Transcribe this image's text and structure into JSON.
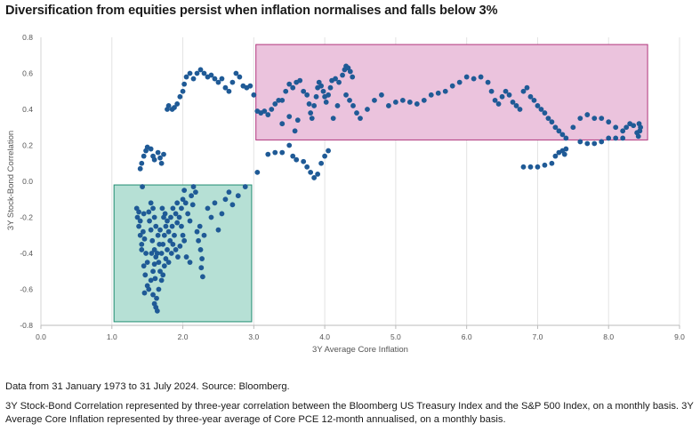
{
  "title": "Diversification from equities persist when inflation normalises and falls below 3%",
  "notes": {
    "source": "Data from 31 January 1973 to 31 July 2024. Source: Bloomberg.",
    "definition": "3Y Stock-Bond Correlation represented by three-year correlation between the Bloomberg US Treasury Index and the S&P 500 Index, on a monthly basis. 3Y Average Core Inflation represented by three-year average of Core PCE 12-month annualised, on a monthly basis."
  },
  "colors": {
    "point": "#1f5a96",
    "green_box_fill": "#b6e0d5",
    "green_box_stroke": "#1f8c70",
    "pink_box_fill": "#ebc3dd",
    "pink_box_stroke": "#b0357c",
    "grid": "#e3e3e3"
  },
  "chart_data": {
    "type": "scatter",
    "xlabel": "3Y Average Core Inflation",
    "ylabel": "3Y Stock-Bond Correlation",
    "xlim": [
      0,
      9
    ],
    "ylim": [
      -0.8,
      0.8
    ],
    "x_ticks": [
      "0.0",
      "1.0",
      "2.0",
      "3.0",
      "4.0",
      "5.0",
      "6.0",
      "7.0",
      "8.0",
      "9.0"
    ],
    "y_ticks": [
      "-0.8",
      "-0.6",
      "-0.4",
      "-0.2",
      "0.0",
      "0.2",
      "0.4",
      "0.6",
      "0.8"
    ],
    "grid": "vertical",
    "regions": [
      {
        "x": [
          1.03,
          2.97
        ],
        "y": [
          -0.78,
          -0.02
        ],
        "color": "green"
      },
      {
        "x": [
          3.03,
          8.55
        ],
        "y": [
          0.23,
          0.76
        ],
        "color": "pink"
      }
    ],
    "points": [
      [
        1.35,
        -0.15
      ],
      [
        1.36,
        -0.2
      ],
      [
        1.38,
        -0.25
      ],
      [
        1.4,
        -0.3
      ],
      [
        1.42,
        -0.35
      ],
      [
        1.38,
        -0.17
      ],
      [
        1.4,
        -0.22
      ],
      [
        1.45,
        -0.18
      ],
      [
        1.44,
        -0.28
      ],
      [
        1.46,
        -0.32
      ],
      [
        1.48,
        -0.4
      ],
      [
        1.45,
        -0.47
      ],
      [
        1.47,
        -0.52
      ],
      [
        1.5,
        -0.58
      ],
      [
        1.46,
        -0.62
      ],
      [
        1.52,
        -0.6
      ],
      [
        1.55,
        -0.55
      ],
      [
        1.58,
        -0.5
      ],
      [
        1.6,
        -0.46
      ],
      [
        1.62,
        -0.42
      ],
      [
        1.6,
        -0.38
      ],
      [
        1.57,
        -0.33
      ],
      [
        1.55,
        -0.27
      ],
      [
        1.53,
        -0.22
      ],
      [
        1.52,
        -0.17
      ],
      [
        1.55,
        -0.12
      ],
      [
        1.58,
        -0.15
      ],
      [
        1.6,
        -0.2
      ],
      [
        1.62,
        -0.25
      ],
      [
        1.65,
        -0.3
      ],
      [
        1.67,
        -0.35
      ],
      [
        1.64,
        -0.4
      ],
      [
        1.66,
        -0.45
      ],
      [
        1.68,
        -0.5
      ],
      [
        1.7,
        -0.55
      ],
      [
        1.66,
        -0.6
      ],
      [
        1.63,
        -0.65
      ],
      [
        1.62,
        -0.7
      ],
      [
        1.64,
        -0.72
      ],
      [
        1.6,
        -0.68
      ],
      [
        1.58,
        -0.63
      ],
      [
        1.7,
        -0.4
      ],
      [
        1.72,
        -0.35
      ],
      [
        1.74,
        -0.3
      ],
      [
        1.76,
        -0.25
      ],
      [
        1.73,
        -0.2
      ],
      [
        1.71,
        -0.15
      ],
      [
        1.75,
        -0.18
      ],
      [
        1.78,
        -0.22
      ],
      [
        1.8,
        -0.28
      ],
      [
        1.82,
        -0.33
      ],
      [
        1.78,
        -0.38
      ],
      [
        1.76,
        -0.43
      ],
      [
        1.74,
        -0.47
      ],
      [
        1.72,
        -0.52
      ],
      [
        1.8,
        -0.45
      ],
      [
        1.84,
        -0.4
      ],
      [
        1.86,
        -0.35
      ],
      [
        1.88,
        -0.3
      ],
      [
        1.85,
        -0.25
      ],
      [
        1.83,
        -0.2
      ],
      [
        1.86,
        -0.15
      ],
      [
        1.9,
        -0.18
      ],
      [
        1.92,
        -0.23
      ],
      [
        1.95,
        -0.2
      ],
      [
        1.98,
        -0.15
      ],
      [
        2.0,
        -0.1
      ],
      [
        2.02,
        -0.05
      ],
      [
        2.04,
        -0.12
      ],
      [
        2.07,
        -0.18
      ],
      [
        2.1,
        -0.22
      ],
      [
        2.12,
        -0.08
      ],
      [
        2.15,
        -0.03
      ],
      [
        2.18,
        -0.06
      ],
      [
        2.14,
        -0.13
      ],
      [
        1.9,
        -0.38
      ],
      [
        1.93,
        -0.42
      ],
      [
        1.96,
        -0.36
      ],
      [
        2.0,
        -0.3
      ],
      [
        2.05,
        -0.42
      ],
      [
        2.1,
        -0.45
      ],
      [
        2.2,
        -0.28
      ],
      [
        2.22,
        -0.33
      ],
      [
        2.25,
        -0.38
      ],
      [
        2.27,
        -0.43
      ],
      [
        2.26,
        -0.48
      ],
      [
        2.28,
        -0.53
      ],
      [
        2.24,
        -0.25
      ],
      [
        2.3,
        -0.3
      ],
      [
        2.35,
        -0.15
      ],
      [
        2.4,
        -0.2
      ],
      [
        2.45,
        -0.12
      ],
      [
        2.5,
        -0.27
      ],
      [
        2.55,
        -0.18
      ],
      [
        2.6,
        -0.1
      ],
      [
        2.65,
        -0.06
      ],
      [
        2.7,
        -0.13
      ],
      [
        2.78,
        -0.08
      ],
      [
        2.88,
        -0.03
      ],
      [
        1.98,
        -0.25
      ],
      [
        2.02,
        -0.33
      ],
      [
        1.42,
        -0.38
      ],
      [
        1.5,
        -0.45
      ],
      [
        1.56,
        -0.4
      ],
      [
        1.61,
        -0.54
      ],
      [
        1.68,
        -0.27
      ],
      [
        1.92,
        -0.12
      ],
      [
        1.4,
        0.07
      ],
      [
        1.42,
        0.1
      ],
      [
        1.45,
        0.14
      ],
      [
        1.48,
        0.17
      ],
      [
        1.5,
        0.19
      ],
      [
        1.55,
        0.18
      ],
      [
        1.58,
        0.14
      ],
      [
        1.6,
        0.12
      ],
      [
        1.65,
        0.16
      ],
      [
        1.68,
        0.13
      ],
      [
        1.7,
        0.1
      ],
      [
        1.73,
        0.15
      ],
      [
        1.43,
        -0.03
      ],
      [
        1.78,
        0.4
      ],
      [
        1.8,
        0.42
      ],
      [
        1.85,
        0.4
      ],
      [
        1.88,
        0.41
      ],
      [
        1.92,
        0.43
      ],
      [
        1.96,
        0.47
      ],
      [
        2.0,
        0.5
      ],
      [
        2.02,
        0.54
      ],
      [
        2.05,
        0.58
      ],
      [
        2.1,
        0.6
      ],
      [
        2.15,
        0.57
      ],
      [
        2.2,
        0.6
      ],
      [
        2.25,
        0.62
      ],
      [
        2.3,
        0.6
      ],
      [
        2.35,
        0.58
      ],
      [
        2.4,
        0.59
      ],
      [
        2.45,
        0.57
      ],
      [
        2.5,
        0.55
      ],
      [
        2.55,
        0.57
      ],
      [
        2.6,
        0.52
      ],
      [
        2.65,
        0.5
      ],
      [
        2.7,
        0.55
      ],
      [
        2.75,
        0.6
      ],
      [
        2.8,
        0.58
      ],
      [
        2.85,
        0.53
      ],
      [
        2.9,
        0.52
      ],
      [
        2.95,
        0.53
      ],
      [
        3.0,
        0.48
      ],
      [
        3.05,
        0.39
      ],
      [
        3.1,
        0.38
      ],
      [
        3.15,
        0.39
      ],
      [
        3.2,
        0.37
      ],
      [
        3.25,
        0.4
      ],
      [
        3.3,
        0.43
      ],
      [
        3.35,
        0.45
      ],
      [
        3.4,
        0.45
      ],
      [
        3.45,
        0.5
      ],
      [
        3.5,
        0.54
      ],
      [
        3.55,
        0.52
      ],
      [
        3.6,
        0.55
      ],
      [
        3.65,
        0.56
      ],
      [
        3.7,
        0.5
      ],
      [
        3.75,
        0.48
      ],
      [
        3.78,
        0.43
      ],
      [
        3.8,
        0.38
      ],
      [
        3.82,
        0.35
      ],
      [
        3.85,
        0.42
      ],
      [
        3.88,
        0.47
      ],
      [
        3.9,
        0.52
      ],
      [
        3.92,
        0.55
      ],
      [
        3.95,
        0.53
      ],
      [
        3.98,
        0.5
      ],
      [
        4.0,
        0.47
      ],
      [
        4.02,
        0.44
      ],
      [
        4.05,
        0.48
      ],
      [
        4.08,
        0.52
      ],
      [
        4.1,
        0.56
      ],
      [
        4.15,
        0.57
      ],
      [
        4.2,
        0.55
      ],
      [
        4.25,
        0.59
      ],
      [
        4.28,
        0.62
      ],
      [
        4.3,
        0.64
      ],
      [
        4.33,
        0.63
      ],
      [
        4.36,
        0.61
      ],
      [
        4.39,
        0.58
      ],
      [
        4.3,
        0.48
      ],
      [
        4.35,
        0.45
      ],
      [
        4.4,
        0.42
      ],
      [
        4.45,
        0.38
      ],
      [
        4.5,
        0.35
      ],
      [
        4.6,
        0.4
      ],
      [
        4.7,
        0.45
      ],
      [
        4.8,
        0.48
      ],
      [
        4.9,
        0.42
      ],
      [
        5.0,
        0.44
      ],
      [
        5.1,
        0.45
      ],
      [
        5.2,
        0.44
      ],
      [
        5.3,
        0.43
      ],
      [
        5.4,
        0.45
      ],
      [
        5.5,
        0.48
      ],
      [
        5.6,
        0.49
      ],
      [
        5.7,
        0.5
      ],
      [
        5.8,
        0.53
      ],
      [
        5.9,
        0.55
      ],
      [
        6.0,
        0.58
      ],
      [
        6.1,
        0.57
      ],
      [
        6.2,
        0.58
      ],
      [
        6.3,
        0.55
      ],
      [
        6.35,
        0.5
      ],
      [
        6.4,
        0.45
      ],
      [
        6.45,
        0.43
      ],
      [
        6.5,
        0.47
      ],
      [
        6.55,
        0.5
      ],
      [
        6.6,
        0.48
      ],
      [
        6.65,
        0.44
      ],
      [
        6.7,
        0.42
      ],
      [
        6.75,
        0.4
      ],
      [
        6.8,
        0.5
      ],
      [
        6.85,
        0.52
      ],
      [
        6.9,
        0.47
      ],
      [
        6.95,
        0.45
      ],
      [
        7.0,
        0.42
      ],
      [
        7.05,
        0.4
      ],
      [
        7.1,
        0.38
      ],
      [
        7.15,
        0.35
      ],
      [
        7.2,
        0.33
      ],
      [
        7.25,
        0.3
      ],
      [
        7.3,
        0.28
      ],
      [
        7.35,
        0.26
      ],
      [
        7.4,
        0.24
      ],
      [
        7.5,
        0.3
      ],
      [
        7.6,
        0.35
      ],
      [
        7.7,
        0.37
      ],
      [
        7.8,
        0.35
      ],
      [
        7.9,
        0.35
      ],
      [
        8.0,
        0.33
      ],
      [
        8.1,
        0.3
      ],
      [
        8.2,
        0.28
      ],
      [
        8.25,
        0.3
      ],
      [
        8.3,
        0.32
      ],
      [
        8.35,
        0.31
      ],
      [
        8.4,
        0.27
      ],
      [
        8.42,
        0.25
      ],
      [
        8.44,
        0.28
      ],
      [
        8.45,
        0.3
      ],
      [
        8.43,
        0.32
      ],
      [
        8.2,
        0.24
      ],
      [
        8.1,
        0.24
      ],
      [
        8.0,
        0.24
      ],
      [
        7.9,
        0.22
      ],
      [
        7.8,
        0.21
      ],
      [
        7.7,
        0.21
      ],
      [
        7.6,
        0.22
      ],
      [
        6.8,
        0.08
      ],
      [
        6.9,
        0.08
      ],
      [
        7.0,
        0.08
      ],
      [
        7.1,
        0.09
      ],
      [
        7.2,
        0.1
      ],
      [
        7.25,
        0.14
      ],
      [
        7.3,
        0.16
      ],
      [
        7.35,
        0.17
      ],
      [
        7.38,
        0.15
      ],
      [
        7.4,
        0.18
      ],
      [
        3.2,
        0.15
      ],
      [
        3.3,
        0.16
      ],
      [
        3.4,
        0.16
      ],
      [
        3.5,
        0.2
      ],
      [
        3.55,
        0.14
      ],
      [
        3.6,
        0.12
      ],
      [
        3.7,
        0.11
      ],
      [
        3.75,
        0.08
      ],
      [
        3.8,
        0.05
      ],
      [
        3.85,
        0.02
      ],
      [
        3.9,
        0.04
      ],
      [
        3.95,
        0.1
      ],
      [
        4.0,
        0.14
      ],
      [
        4.05,
        0.17
      ],
      [
        3.05,
        0.05
      ],
      [
        4.12,
        0.35
      ],
      [
        4.18,
        0.42
      ],
      [
        3.4,
        0.32
      ],
      [
        3.5,
        0.36
      ],
      [
        3.58,
        0.28
      ],
      [
        3.62,
        0.34
      ]
    ]
  }
}
